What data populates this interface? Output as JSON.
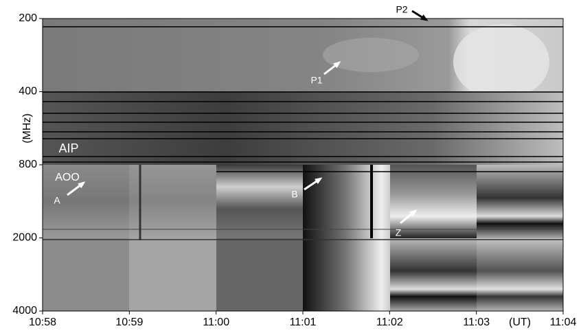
{
  "chart_data": {
    "type": "spectrogram",
    "ylabel": "(MHz)",
    "xlabel": "(UT)",
    "yticks": [
      200,
      400,
      800,
      2000,
      4000
    ],
    "xticks": [
      "10:58",
      "10:59",
      "11:00",
      "11:01",
      "11:02",
      "11:03",
      "11:04"
    ],
    "annotations": [
      {
        "text": "A",
        "color": "#ffffff"
      },
      {
        "text": "B",
        "color": "#ffffff"
      },
      {
        "text": "P1",
        "color": "#ffffff"
      },
      {
        "text": "P2",
        "color": "#000000"
      },
      {
        "text": "Z",
        "color": "#ffffff"
      },
      {
        "text": "AIP",
        "color": "#ffffff"
      },
      {
        "text": "AOO",
        "color": "#ffffff"
      }
    ]
  }
}
